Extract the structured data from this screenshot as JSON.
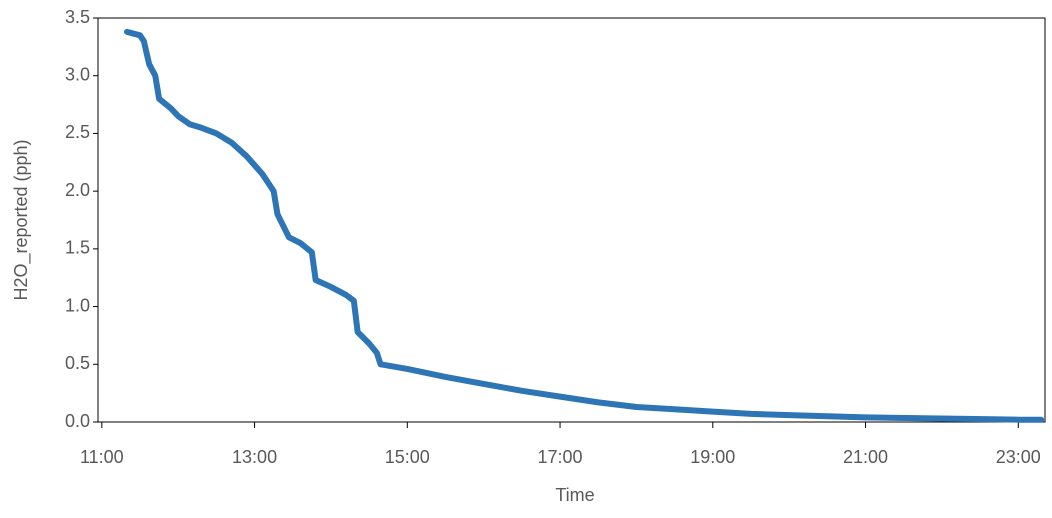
{
  "chart_data": {
    "type": "line",
    "x_label": "Time",
    "y_label": "H2O_reported (pph)",
    "x": [
      11.33,
      11.5,
      11.55,
      11.62,
      11.7,
      11.75,
      11.9,
      12.0,
      12.15,
      12.3,
      12.5,
      12.7,
      12.9,
      13.1,
      13.25,
      13.3,
      13.45,
      13.6,
      13.75,
      13.8,
      14.0,
      14.2,
      14.3,
      14.35,
      14.5,
      14.6,
      14.65,
      15.0,
      15.5,
      16.0,
      16.5,
      17.0,
      17.5,
      18.0,
      18.5,
      19.0,
      19.5,
      20.0,
      20.5,
      21.0,
      22.0,
      23.0,
      23.3
    ],
    "series": [
      {
        "color": "#2e75b6",
        "values": [
          3.38,
          3.35,
          3.3,
          3.1,
          3.0,
          2.8,
          2.72,
          2.65,
          2.58,
          2.55,
          2.5,
          2.42,
          2.3,
          2.15,
          2.0,
          1.8,
          1.6,
          1.55,
          1.47,
          1.23,
          1.17,
          1.1,
          1.05,
          0.78,
          0.68,
          0.6,
          0.5,
          0.46,
          0.39,
          0.33,
          0.27,
          0.22,
          0.17,
          0.13,
          0.11,
          0.09,
          0.07,
          0.06,
          0.05,
          0.04,
          0.03,
          0.02,
          0.02
        ]
      }
    ],
    "xlim": [
      10.95,
      23.35
    ],
    "xticks": [
      {
        "value": 11,
        "label": "11:00"
      },
      {
        "value": 13,
        "label": "13:00"
      },
      {
        "value": 15,
        "label": "15:00"
      },
      {
        "value": 17,
        "label": "17:00"
      },
      {
        "value": 19,
        "label": "19:00"
      },
      {
        "value": 21,
        "label": "21:00"
      },
      {
        "value": 23,
        "label": "23:00"
      }
    ],
    "ylim": [
      0,
      3.5
    ],
    "yticks": [
      {
        "value": 0,
        "label": "0.0"
      },
      0.5,
      {
        "value": 1,
        "label": "1.0"
      },
      1.5,
      {
        "value": 2,
        "label": "2.0"
      },
      2.5,
      {
        "value": 3,
        "label": "3.0"
      },
      3.5
    ]
  }
}
